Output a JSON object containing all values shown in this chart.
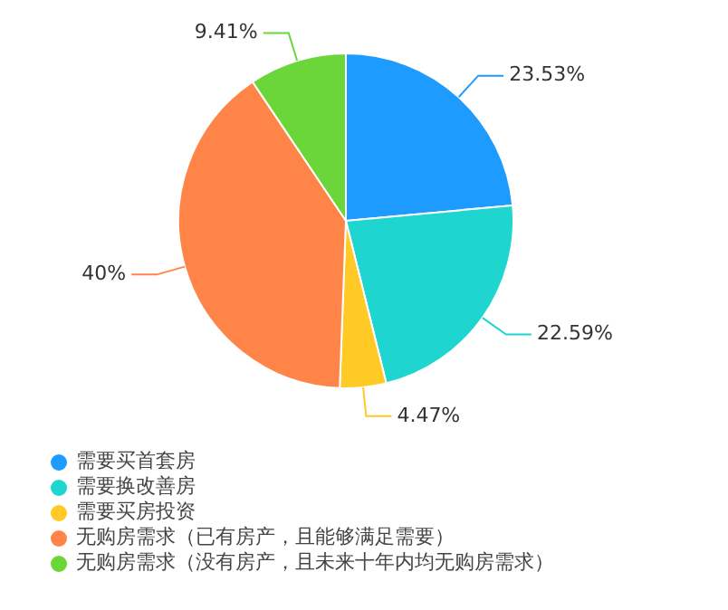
{
  "chart_data": {
    "type": "pie",
    "categories": [
      "需要买首套房",
      "需要换改善房",
      "需要买房投资",
      "无购房需求（已有房产，且能够满足需要）",
      "无购房需求（没有房产，且未来十年内均无购房需求）"
    ],
    "values": [
      23.53,
      22.59,
      4.47,
      40,
      9.41
    ],
    "value_labels": [
      "23.53%",
      "22.59%",
      "4.47%",
      "40%",
      "9.41%"
    ],
    "colors": [
      "#1e9bff",
      "#1fd5cf",
      "#ffc926",
      "#ff8448",
      "#6ad63a"
    ],
    "legend": "bottom left"
  }
}
